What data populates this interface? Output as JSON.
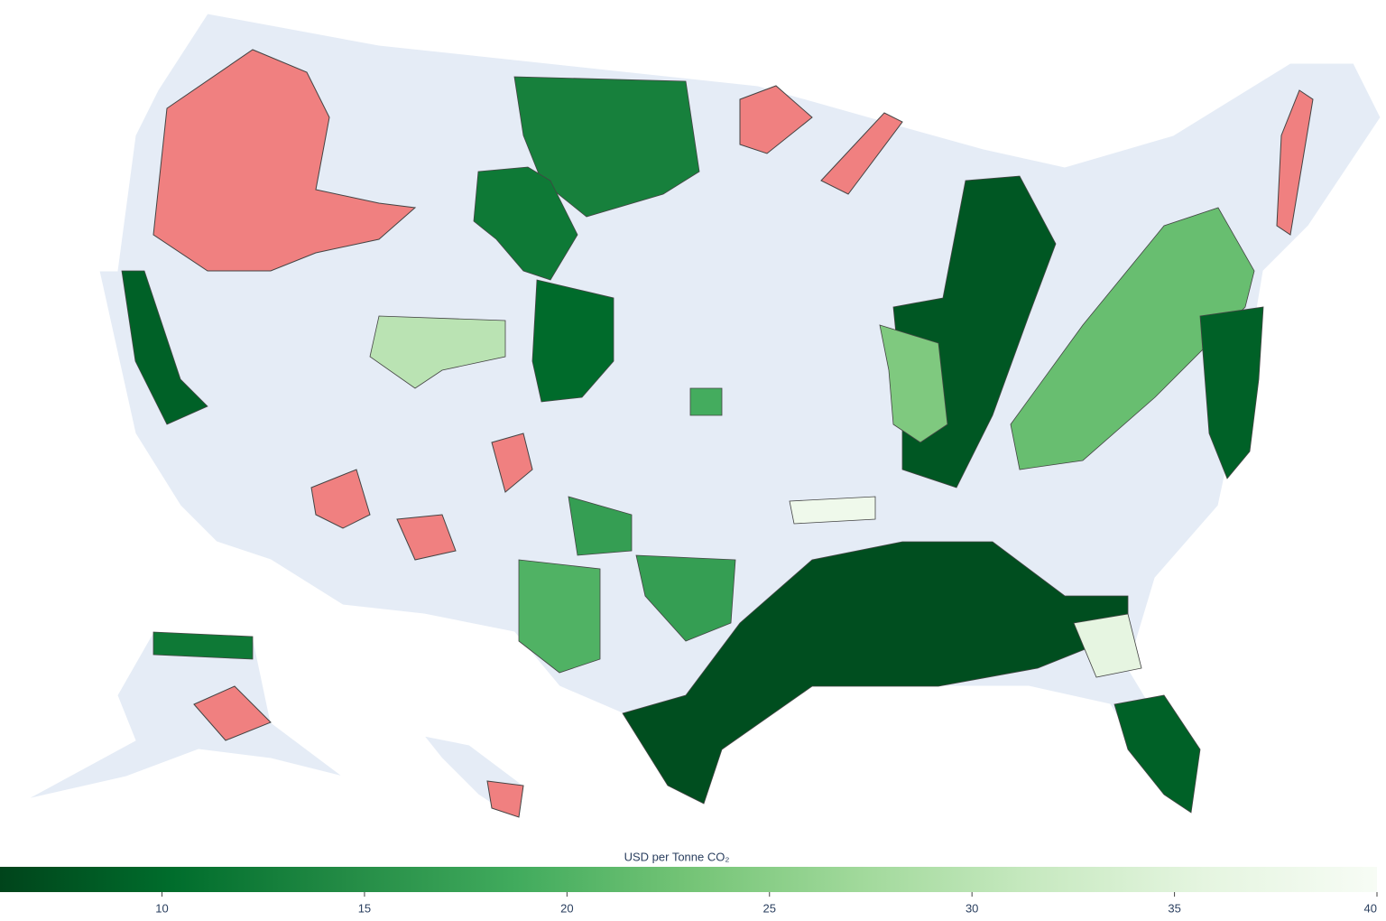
{
  "chart_data": {
    "type": "choropleth",
    "colorbar_title": "USD per Tonne CO₂",
    "colorscale": [
      "#00441b",
      "#006d2c",
      "#238b45",
      "#41ab5d",
      "#74c476",
      "#a1d99b",
      "#c7e9c0",
      "#e5f5e0",
      "#f7fcf5"
    ],
    "clim": [
      6,
      40
    ],
    "ticks": [
      10,
      15,
      20,
      25,
      30,
      35,
      40
    ],
    "values": [
      13,
      12,
      30,
      10,
      8,
      24,
      22,
      9,
      7,
      9,
      36,
      9,
      17,
      20,
      17,
      12,
      19,
      38
    ]
  }
}
